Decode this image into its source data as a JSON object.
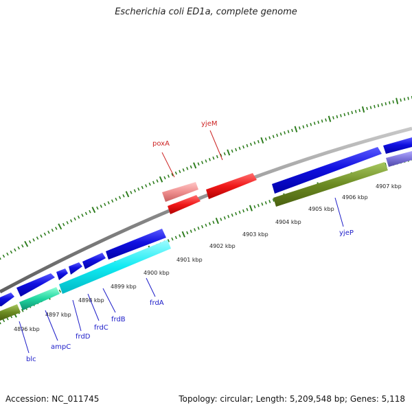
{
  "title": "Escherichia coli ED1a, complete genome",
  "footer": {
    "accession": "Accession: NC_011745",
    "summary": "Topology: circular; Length: 5,209,548 bp; Genes: 5,118"
  },
  "colors": {
    "backbone": "#8a8a8a",
    "tick": "#2e7d1e",
    "forward_cds": "#0a0ad8",
    "reverse_cds": "#00e6ee",
    "rna_red": "#ee1111",
    "rna_pink": "#ef8f8f",
    "olive": "#6b8a22",
    "teal": "#20d6a0",
    "lavender": "#7b72d8",
    "gene_label_blue": "#1b1bc8",
    "gene_label_red": "#cc2222"
  },
  "kbp_labels": [
    "4896 kbp",
    "4897 kbp",
    "4898 kbp",
    "4899 kbp",
    "4900 kbp",
    "4901 kbp",
    "4902 kbp",
    "4903 kbp",
    "4904 kbp",
    "4905 kbp",
    "4906 kbp",
    "4907 kbp"
  ],
  "gene_labels": {
    "poxA": "poxA",
    "yjeM": "yjeM",
    "yjeP": "yjeP",
    "frdA": "frdA",
    "frdB": "frdB",
    "frdC": "frdC",
    "frdD": "frdD",
    "ampC": "ampC",
    "blc": "blc"
  }
}
